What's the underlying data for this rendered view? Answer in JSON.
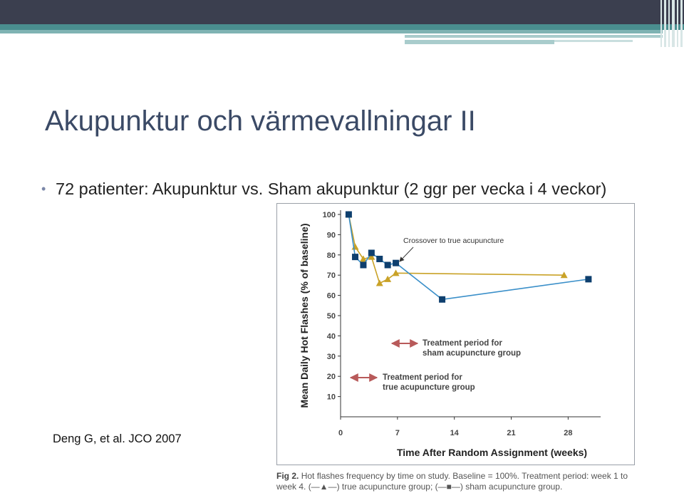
{
  "slide": {
    "title": "Akupunktur och värmevallningar II",
    "bullet": "72 patienter: Akupunktur vs. Sham akupunktur (2 ggr per vecka i 4 veckor)",
    "citation": "Deng G, et al. JCO 2007"
  },
  "figure": {
    "caption_label": "Fig 2.",
    "caption_text": "Hot flashes frequency by time on study. Baseline = 100%. Treatment period: week 1 to week 4. (—▲—) true acupuncture group; (—■—) sham acupuncture group."
  },
  "colors": {
    "true_acupuncture": "#c9a227",
    "sham_acupuncture": "#3a8fc9",
    "sham_marker": "#0e3f6e",
    "arrow": "#b85a5a"
  },
  "chart_data": {
    "type": "line",
    "xlabel": "Time After Random Assignment (weeks)",
    "ylabel": "Mean Daily Hot Flashes (% of baseline)",
    "xlim": [
      0,
      32
    ],
    "ylim": [
      0,
      100
    ],
    "xticks": [
      0,
      7,
      14,
      21,
      28
    ],
    "yticks": [
      10,
      20,
      30,
      40,
      50,
      60,
      70,
      80,
      90,
      100
    ],
    "grid": false,
    "legend": "none",
    "series": [
      {
        "marker": "triangle",
        "x": [
          1,
          1.8,
          2.8,
          3.8,
          4.8,
          5.8,
          6.8,
          27.5
        ],
        "y": [
          100,
          84,
          78,
          79,
          66,
          68,
          71,
          70
        ]
      },
      {
        "marker": "square",
        "x": [
          1,
          1.8,
          2.8,
          3.8,
          4.8,
          5.8,
          6.8,
          12.5,
          30.5
        ],
        "y": [
          100,
          79,
          75,
          81,
          78,
          75,
          76,
          58,
          68
        ]
      }
    ],
    "annotations": [
      {
        "text": "Crossover to true acupuncture"
      },
      {
        "text": "Treatment period for",
        "text2": "sham acupuncture group"
      },
      {
        "text": "Treatment period for",
        "text2": "true acupuncture group"
      }
    ]
  }
}
